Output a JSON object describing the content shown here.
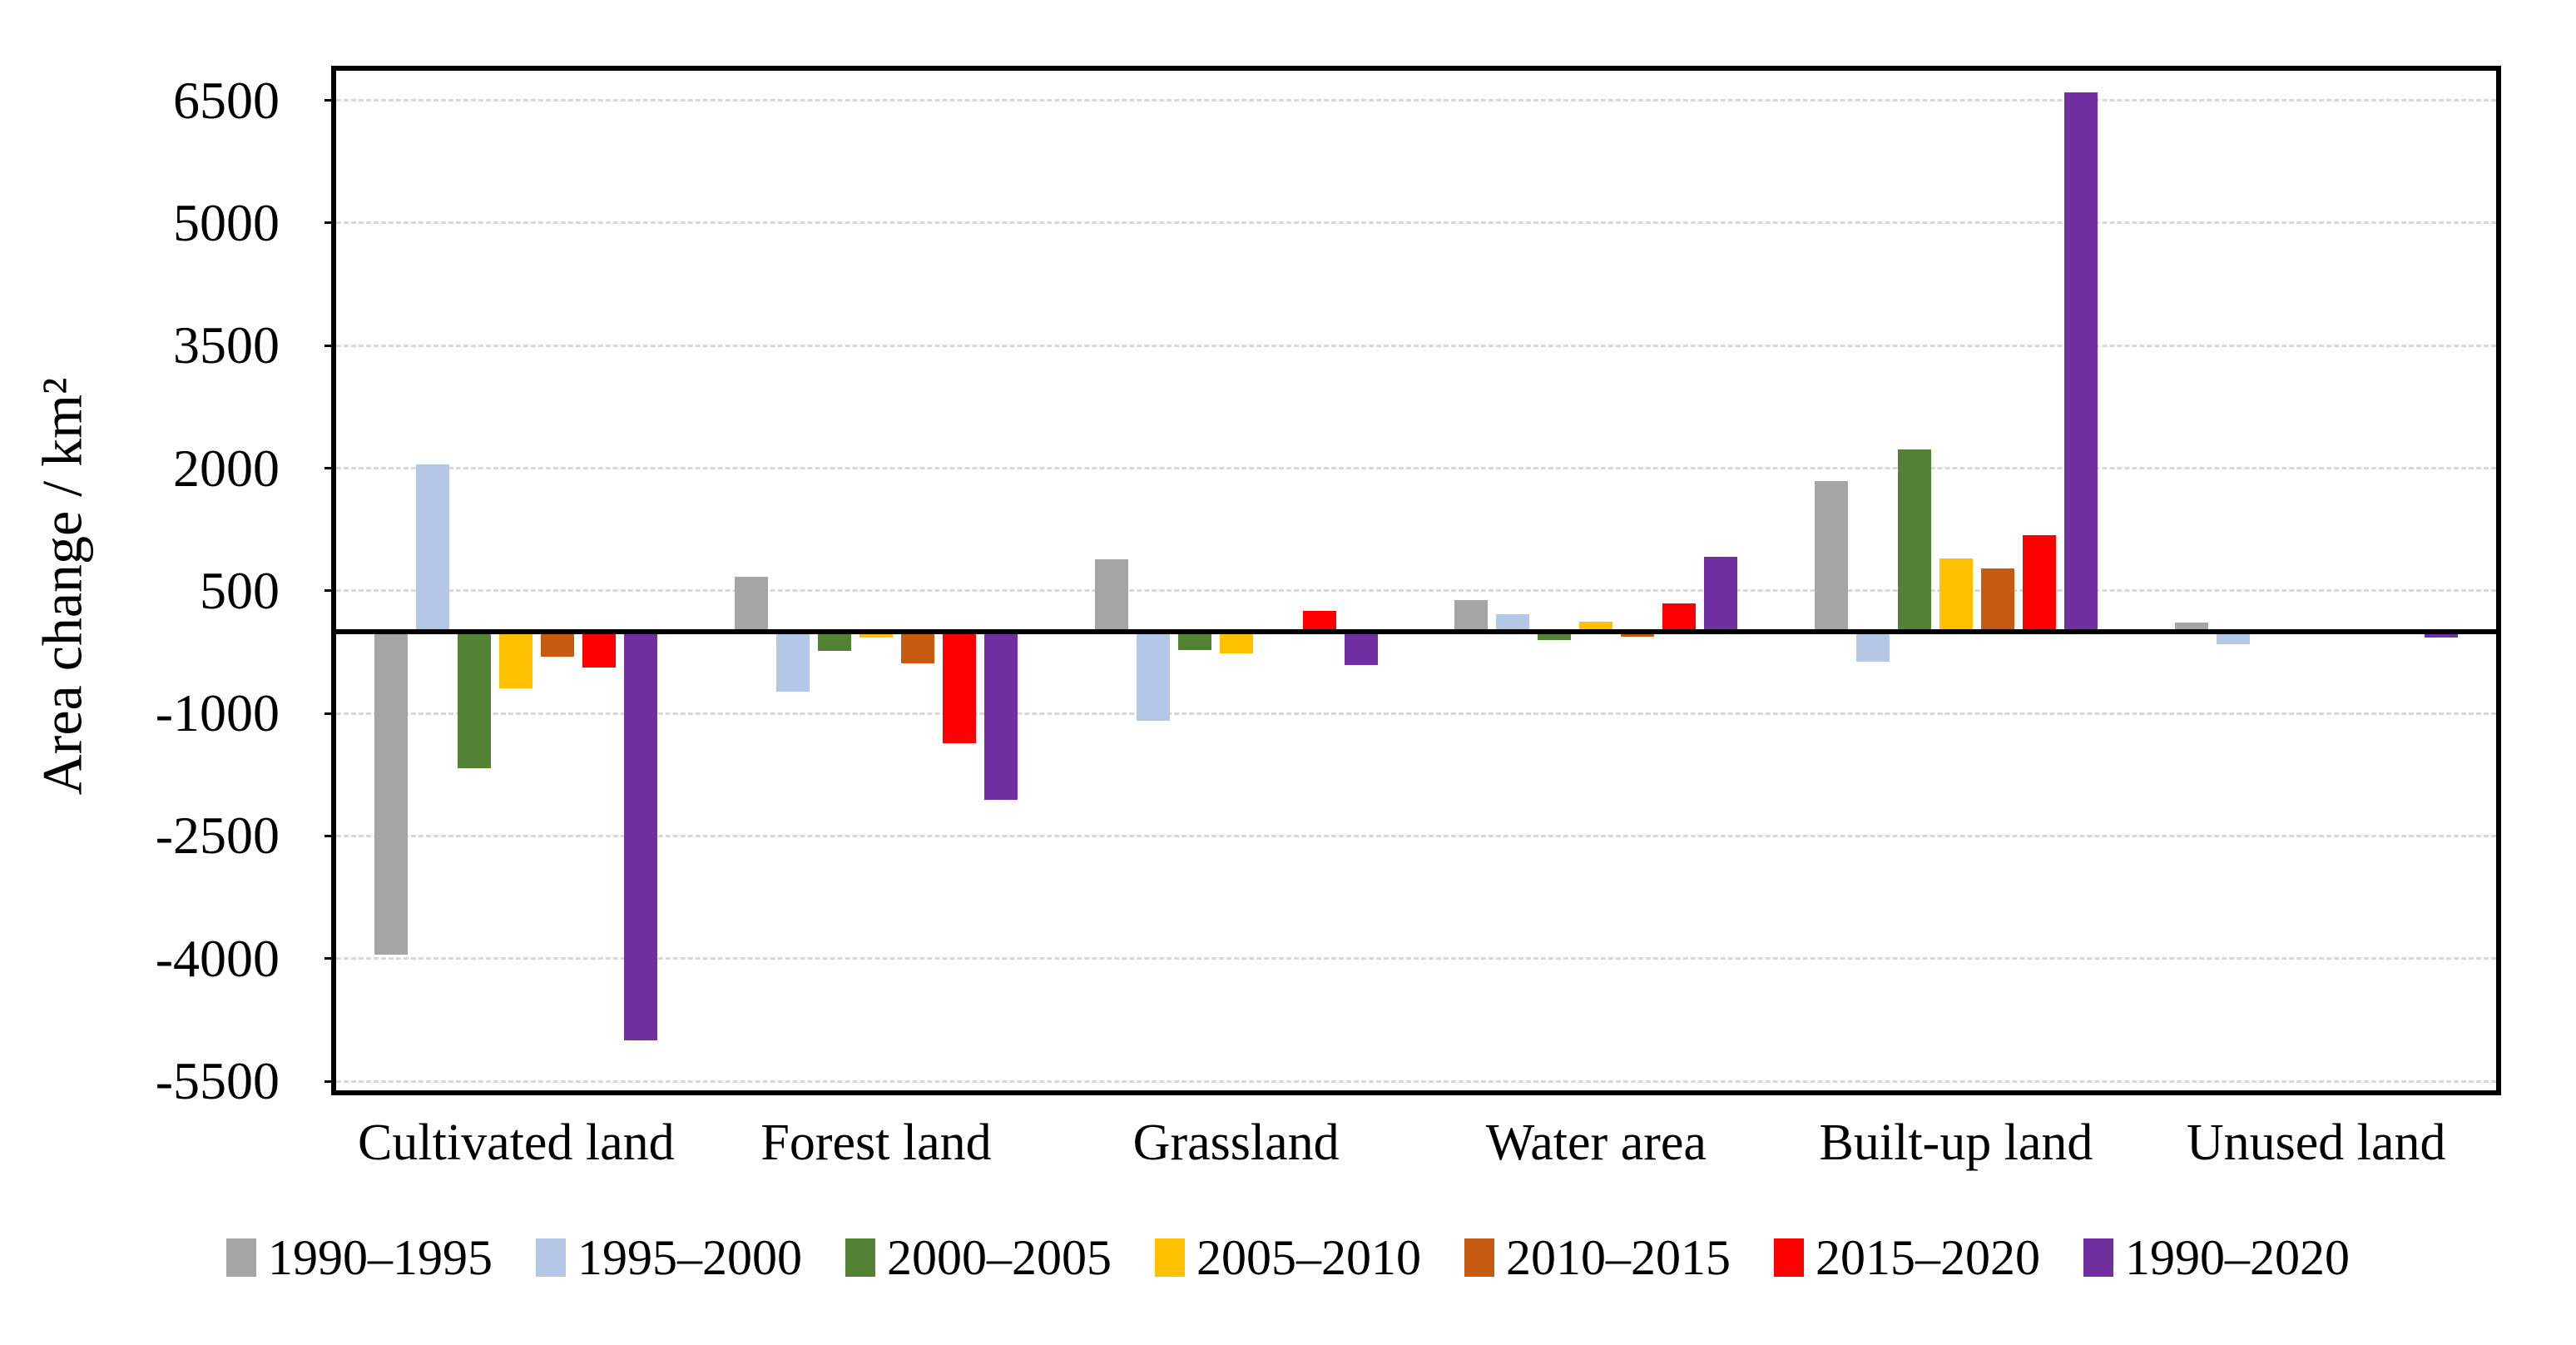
{
  "figure": {
    "background": "#FFFFFF",
    "grid_color": "#D8D8D8",
    "axis_color": "#000000"
  },
  "chart_data": {
    "type": "bar",
    "title": "",
    "xlabel": "",
    "ylabel": "Area change / km²",
    "grid": "horizontal-dashed",
    "legend_position": "bottom",
    "ylim": [
      -5611,
      6863
    ],
    "baseline": 0,
    "y_ticks": [
      6500,
      5000,
      3500,
      2000,
      500,
      -1000,
      -2500,
      -4000,
      -5500
    ],
    "y_tick_labels": [
      "6500",
      "5000",
      "3500",
      "2000",
      "500",
      "-1000",
      "-2500",
      "-4000",
      "-5500"
    ],
    "categories": [
      "Cultivated land",
      "Forest land",
      "Grassland",
      "Water area",
      "Built-up land",
      "Unused land"
    ],
    "series": [
      {
        "name": "1990–1995",
        "color": "#A5A5A5",
        "values": [
          -3950,
          670,
          890,
          390,
          1840,
          110
        ]
      },
      {
        "name": "1995–2000",
        "color": "#B4C7E7",
        "values": [
          2050,
          -730,
          -1090,
          210,
          -370,
          -155
        ]
      },
      {
        "name": "2000–2005",
        "color": "#548235",
        "values": [
          -1670,
          -230,
          -220,
          -100,
          2230,
          0
        ]
      },
      {
        "name": "2005–2010",
        "color": "#FFC000",
        "values": [
          -690,
          -70,
          -260,
          125,
          900,
          0
        ]
      },
      {
        "name": "2010–2015",
        "color": "#C55A11",
        "values": [
          -310,
          -390,
          0,
          -60,
          770,
          0
        ]
      },
      {
        "name": "2015–2020",
        "color": "#FF0000",
        "values": [
          -440,
          -1360,
          250,
          350,
          1180,
          0
        ]
      },
      {
        "name": "1990–2020",
        "color": "#7030A0",
        "values": [
          -5000,
          -2060,
          -410,
          920,
          6600,
          -75
        ]
      }
    ]
  }
}
